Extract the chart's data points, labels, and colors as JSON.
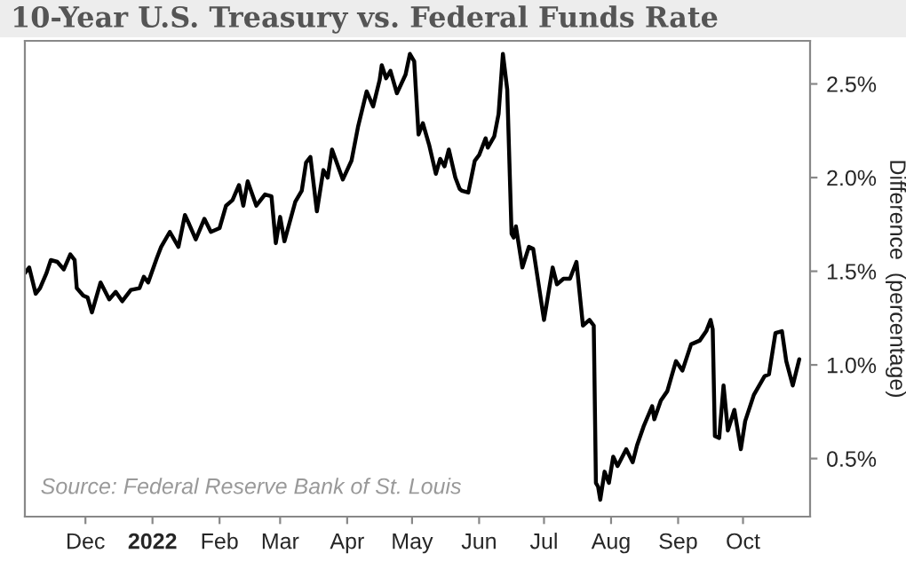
{
  "chart_data": {
    "type": "line",
    "title": "10-Year U.S. Treasury vs. Federal Funds Rate",
    "ylabel": "Difference  (percentage)",
    "annotations": [
      "Source: Federal Reserve Bank of St. Louis"
    ],
    "x": [
      "2021-11-03",
      "2021-11-05",
      "2021-11-08",
      "2021-11-10",
      "2021-11-13",
      "2021-11-15",
      "2021-11-18",
      "2021-11-21",
      "2021-11-24",
      "2021-11-26",
      "2021-11-27",
      "2021-11-30",
      "2021-12-02",
      "2021-12-04",
      "2021-12-08",
      "2021-12-12",
      "2021-12-15",
      "2021-12-18",
      "2021-12-22",
      "2021-12-26",
      "2021-12-28",
      "2021-12-30",
      "2022-01-03",
      "2022-01-05",
      "2022-01-09",
      "2022-01-13",
      "2022-01-16",
      "2022-01-18",
      "2022-01-21",
      "2022-01-25",
      "2022-01-28",
      "2022-02-01",
      "2022-02-04",
      "2022-02-07",
      "2022-02-10",
      "2022-02-12",
      "2022-02-14",
      "2022-02-18",
      "2022-02-22",
      "2022-02-25",
      "2022-02-27",
      "2022-03-01",
      "2022-03-03",
      "2022-03-08",
      "2022-03-11",
      "2022-03-13",
      "2022-03-15",
      "2022-03-18",
      "2022-03-21",
      "2022-03-23",
      "2022-03-25",
      "2022-03-30",
      "2022-04-03",
      "2022-04-06",
      "2022-04-10",
      "2022-04-13",
      "2022-04-16",
      "2022-04-17",
      "2022-04-19",
      "2022-04-21",
      "2022-04-24",
      "2022-04-28",
      "2022-04-30",
      "2022-05-02",
      "2022-05-04",
      "2022-05-06",
      "2022-05-09",
      "2022-05-12",
      "2022-05-14",
      "2022-05-16",
      "2022-05-18",
      "2022-05-21",
      "2022-05-23",
      "2022-05-24",
      "2022-05-27",
      "2022-05-30",
      "2022-06-01",
      "2022-06-04",
      "2022-06-05",
      "2022-06-08",
      "2022-06-10",
      "2022-06-12",
      "2022-06-14",
      "2022-06-16",
      "2022-06-17",
      "2022-06-18",
      "2022-06-21",
      "2022-06-24",
      "2022-06-26",
      "2022-07-01",
      "2022-07-05",
      "2022-07-07",
      "2022-07-10",
      "2022-07-13",
      "2022-07-16",
      "2022-07-19",
      "2022-07-22",
      "2022-07-24",
      "2022-07-25",
      "2022-07-26",
      "2022-07-27",
      "2022-07-29",
      "2022-07-31",
      "2022-08-02",
      "2022-08-04",
      "2022-08-08",
      "2022-08-11",
      "2022-08-13",
      "2022-08-16",
      "2022-08-20",
      "2022-08-21",
      "2022-08-24",
      "2022-08-27",
      "2022-08-29",
      "2022-08-31",
      "2022-09-03",
      "2022-09-07",
      "2022-09-11",
      "2022-09-14",
      "2022-09-16",
      "2022-09-17",
      "2022-09-18",
      "2022-09-20",
      "2022-09-22",
      "2022-09-24",
      "2022-09-27",
      "2022-09-30",
      "2022-10-02",
      "2022-10-06",
      "2022-10-11",
      "2022-10-13",
      "2022-10-16",
      "2022-10-19",
      "2022-10-21",
      "2022-10-24",
      "2022-10-27"
    ],
    "series": [
      {
        "color": "#000000",
        "values": [
          1.49,
          1.52,
          1.38,
          1.41,
          1.49,
          1.56,
          1.55,
          1.51,
          1.59,
          1.56,
          1.41,
          1.37,
          1.36,
          1.28,
          1.44,
          1.35,
          1.39,
          1.34,
          1.4,
          1.41,
          1.47,
          1.44,
          1.57,
          1.63,
          1.71,
          1.63,
          1.8,
          1.75,
          1.67,
          1.78,
          1.71,
          1.73,
          1.85,
          1.88,
          1.96,
          1.85,
          1.98,
          1.85,
          1.91,
          1.9,
          1.65,
          1.79,
          1.66,
          1.87,
          1.93,
          2.08,
          2.11,
          1.82,
          2.04,
          2.0,
          2.15,
          1.99,
          2.09,
          2.27,
          2.46,
          2.38,
          2.52,
          2.6,
          2.53,
          2.57,
          2.45,
          2.55,
          2.66,
          2.62,
          2.23,
          2.29,
          2.17,
          2.02,
          2.1,
          2.06,
          2.15,
          2.0,
          1.94,
          1.93,
          1.92,
          2.09,
          2.12,
          2.21,
          2.16,
          2.22,
          2.34,
          2.66,
          2.47,
          1.7,
          1.68,
          1.74,
          1.52,
          1.63,
          1.62,
          1.24,
          1.52,
          1.43,
          1.46,
          1.46,
          1.55,
          1.21,
          1.24,
          1.21,
          0.37,
          0.35,
          0.28,
          0.43,
          0.37,
          0.51,
          0.46,
          0.55,
          0.48,
          0.57,
          0.67,
          0.78,
          0.71,
          0.81,
          0.86,
          0.94,
          1.02,
          0.97,
          1.11,
          1.13,
          1.18,
          1.24,
          1.19,
          0.62,
          0.61,
          0.89,
          0.65,
          0.76,
          0.55,
          0.7,
          0.84,
          0.94,
          0.95,
          1.17,
          1.18,
          1.02,
          0.89,
          1.03
        ]
      }
    ],
    "xlim": [
      "2021-11-03",
      "2022-11-01"
    ],
    "xticks": [
      {
        "value": "2021-12-01",
        "label": "Dec"
      },
      {
        "value": "2022-01-01",
        "label": "2022"
      },
      {
        "value": "2022-02-01",
        "label": "Feb"
      },
      {
        "value": "2022-03-01",
        "label": "Mar"
      },
      {
        "value": "2022-04-01",
        "label": "Apr"
      },
      {
        "value": "2022-05-01",
        "label": "May"
      },
      {
        "value": "2022-06-01",
        "label": "Jun"
      },
      {
        "value": "2022-07-01",
        "label": "Jul"
      },
      {
        "value": "2022-08-01",
        "label": "Aug"
      },
      {
        "value": "2022-09-01",
        "label": "Sep"
      },
      {
        "value": "2022-10-01",
        "label": "Oct"
      }
    ],
    "ylim": [
      0.19,
      2.73
    ],
    "yticks": [
      {
        "value": 0.5,
        "label": "0.5%"
      },
      {
        "value": 1.0,
        "label": "1.0%"
      },
      {
        "value": 1.5,
        "label": "1.5%"
      },
      {
        "value": 2.0,
        "label": "2.0%"
      },
      {
        "value": 2.5,
        "label": "2.5%"
      }
    ],
    "grid": false,
    "legend": false
  }
}
